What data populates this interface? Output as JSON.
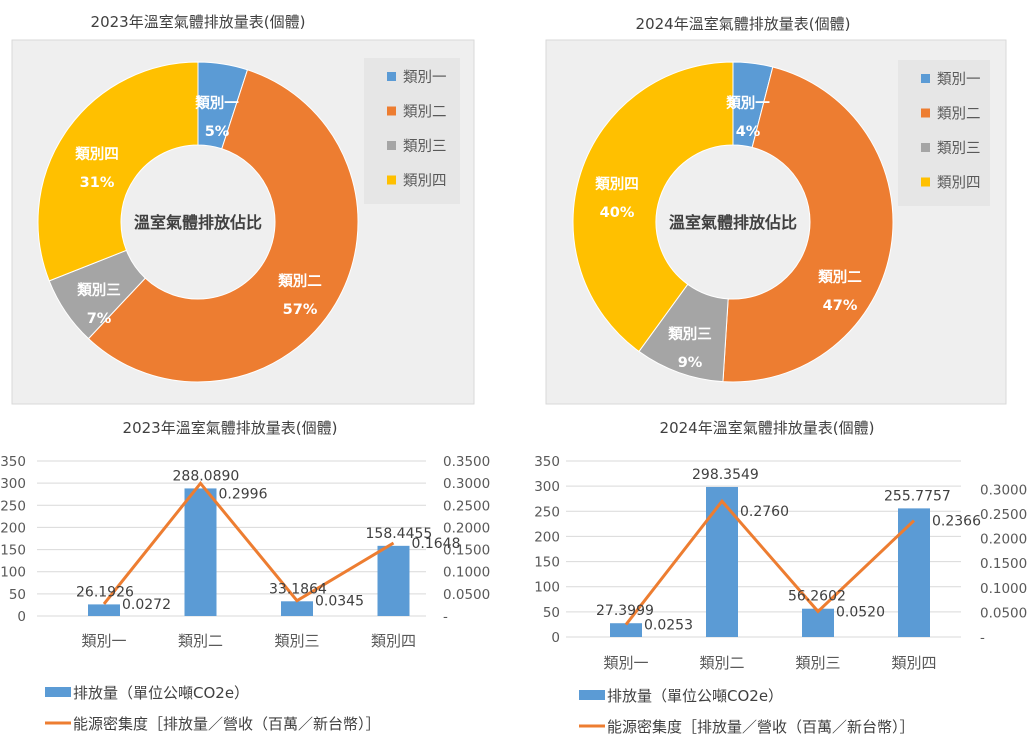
{
  "chart_data": [
    {
      "type": "pie",
      "subtype": "donut",
      "title": "2023年溫室氣體排放量表(個體)",
      "center_text": "溫室氣體排放佔比",
      "categories": [
        "類別一",
        "類別二",
        "類別三",
        "類別四"
      ],
      "values": [
        5,
        57,
        7,
        31
      ],
      "value_labels": [
        "5%",
        "57%",
        "7%",
        "31%"
      ],
      "legend_position": "right",
      "colors": [
        "#5b9bd5",
        "#ed7d31",
        "#a5a5a5",
        "#ffc000"
      ],
      "background": "#efefef"
    },
    {
      "type": "pie",
      "subtype": "donut",
      "title": "2024年溫室氣體排放量表(個體)",
      "center_text": "溫室氣體排放佔比",
      "categories": [
        "類別一",
        "類別二",
        "類別三",
        "類別四"
      ],
      "values": [
        4,
        47,
        9,
        40
      ],
      "value_labels": [
        "4%",
        "47%",
        "9%",
        "40%"
      ],
      "legend_position": "right",
      "colors": [
        "#5b9bd5",
        "#ed7d31",
        "#a5a5a5",
        "#ffc000"
      ],
      "background": "#efefef"
    },
    {
      "type": "bar",
      "combo": "bar+line",
      "title": "2023年溫室氣體排放量表(個體)",
      "categories": [
        "類別一",
        "類別二",
        "類別三",
        "類別四"
      ],
      "series": [
        {
          "name": "排放量（單位公噸CO2e）",
          "type": "bar",
          "axis": "left",
          "values": [
            26.1926,
            288.089,
            33.1864,
            158.4455
          ],
          "labels": [
            "26.1926",
            "288.0890",
            "33.1864",
            "158.4455"
          ]
        },
        {
          "name": "能源密集度［排放量／營收（百萬／新台幣）］",
          "type": "line",
          "axis": "right",
          "values": [
            0.0272,
            0.2996,
            0.0345,
            0.1648
          ],
          "labels": [
            "0.0272",
            "0.2996",
            "0.0345",
            "0.1648"
          ]
        }
      ],
      "y_left": {
        "min": 0,
        "max": 350,
        "ticks": [
          "0",
          "50",
          "100",
          "150",
          "200",
          "250",
          "300",
          "350"
        ]
      },
      "y_right": {
        "min": 0,
        "max": 0.35,
        "ticks": [
          "-",
          "0.0500",
          "0.1000",
          "0.1500",
          "0.2000",
          "0.2500",
          "0.3000",
          "0.3500"
        ]
      },
      "grid": true,
      "legend_position": "bottom",
      "colors": [
        "#5b9bd5",
        "#ed7d31"
      ]
    },
    {
      "type": "bar",
      "combo": "bar+line",
      "title": "2024年溫室氣體排放量表(個體)",
      "categories": [
        "類別一",
        "類別二",
        "類別三",
        "類別四"
      ],
      "series": [
        {
          "name": "排放量（單位公噸CO2e）",
          "type": "bar",
          "axis": "left",
          "values": [
            27.3999,
            298.3549,
            56.2602,
            255.7757
          ],
          "labels": [
            "27.3999",
            "298.3549",
            "56.2602",
            "255.7757"
          ]
        },
        {
          "name": "能源密集度［排放量／營收（百萬／新台幣）］",
          "type": "line",
          "axis": "right",
          "values": [
            0.0253,
            0.276,
            0.052,
            0.2366
          ],
          "labels": [
            "0.0253",
            "0.2760",
            "0.0520",
            "0.2366"
          ]
        }
      ],
      "y_left": {
        "min": 0,
        "max": 350,
        "ticks": [
          "0",
          "50",
          "100",
          "150",
          "200",
          "250",
          "300",
          "350"
        ]
      },
      "y_right": {
        "min": 0,
        "max": 0.3,
        "ticks": [
          "-",
          "0.0500",
          "0.1000",
          "0.1500",
          "0.2000",
          "0.2500",
          "0.3000"
        ]
      },
      "grid": true,
      "legend_position": "bottom",
      "colors": [
        "#5b9bd5",
        "#ed7d31"
      ]
    }
  ]
}
